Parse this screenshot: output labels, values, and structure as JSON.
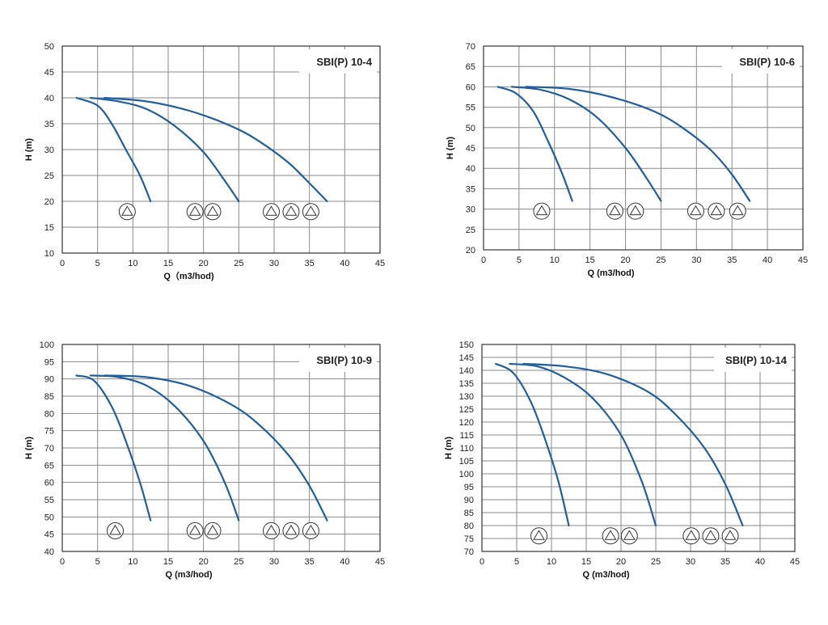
{
  "chart_data": [
    {
      "type": "line",
      "title": "SBI(P) 10-4",
      "xlabel": "Q（m3/hod)",
      "ylabel": "H (m)",
      "xlim": [
        0,
        45
      ],
      "ylim": [
        10,
        50
      ],
      "xticks": [
        0,
        5,
        10,
        15,
        20,
        25,
        30,
        35,
        40,
        45
      ],
      "yticks": [
        10,
        15,
        20,
        25,
        30,
        35,
        40,
        45,
        50
      ],
      "grid": true,
      "series": [
        {
          "x": [
            2,
            5,
            7,
            9,
            11,
            12.5
          ],
          "y": [
            40,
            38.5,
            35,
            30,
            25,
            20
          ]
        },
        {
          "x": [
            4,
            8,
            12,
            16,
            20,
            23,
            25
          ],
          "y": [
            40,
            39.3,
            37.8,
            34.5,
            29.5,
            24,
            20
          ]
        },
        {
          "x": [
            6,
            12,
            18,
            24,
            28,
            32,
            35,
            37.5
          ],
          "y": [
            40,
            39.3,
            37.5,
            34.5,
            31.5,
            27.5,
            23.5,
            20
          ]
        }
      ],
      "markers": {
        "y": 18,
        "x": [
          9.2,
          18.8,
          21.3,
          29.6,
          32.4,
          35.2
        ]
      }
    },
    {
      "type": "line",
      "title": "SBI(P) 10-6",
      "xlabel": "Q (m3/hod)",
      "ylabel": "H (m)",
      "xlim": [
        0,
        45
      ],
      "ylim": [
        20,
        70
      ],
      "xticks": [
        0,
        5,
        10,
        15,
        20,
        25,
        30,
        35,
        40,
        45
      ],
      "yticks": [
        20,
        25,
        30,
        35,
        40,
        45,
        50,
        55,
        60,
        65,
        70
      ],
      "grid": true,
      "series": [
        {
          "x": [
            2,
            4.5,
            7,
            9,
            11,
            12.5
          ],
          "y": [
            60,
            58.5,
            54,
            47,
            39,
            32
          ]
        },
        {
          "x": [
            4,
            8,
            12,
            16,
            20,
            23,
            25
          ],
          "y": [
            60,
            59.3,
            57,
            52.5,
            45,
            37.5,
            32
          ]
        },
        {
          "x": [
            6,
            12,
            18,
            24,
            28,
            32,
            35,
            37.5
          ],
          "y": [
            60,
            59.5,
            57.5,
            54,
            50,
            44.5,
            38.5,
            32
          ]
        }
      ],
      "markers": {
        "y": 29.5,
        "x": [
          8.2,
          18.5,
          21.4,
          29.9,
          32.8,
          35.8
        ]
      }
    },
    {
      "type": "line",
      "title": "SBI(P) 10-9",
      "xlabel": "Q (m3/hod)",
      "ylabel": "H (m)",
      "xlim": [
        0,
        45
      ],
      "ylim": [
        40,
        100
      ],
      "xticks": [
        0,
        5,
        10,
        15,
        20,
        25,
        30,
        35,
        40,
        45
      ],
      "yticks": [
        40,
        45,
        50,
        55,
        60,
        65,
        70,
        75,
        80,
        85,
        90,
        95,
        100
      ],
      "grid": true,
      "series": [
        {
          "x": [
            2,
            4.5,
            7,
            9,
            11,
            12.5
          ],
          "y": [
            91,
            89.5,
            82,
            72,
            60,
            49
          ]
        },
        {
          "x": [
            4,
            8,
            12,
            16,
            20,
            23,
            25
          ],
          "y": [
            91,
            90.5,
            88,
            82,
            72,
            60,
            49
          ]
        },
        {
          "x": [
            6,
            12,
            18,
            24,
            28,
            32,
            35,
            37.5
          ],
          "y": [
            91,
            90.5,
            88,
            82.5,
            76.5,
            68,
            59,
            49
          ]
        }
      ],
      "markers": {
        "y": 46,
        "x": [
          7.5,
          18.8,
          21.3,
          29.6,
          32.4,
          35.2
        ]
      }
    },
    {
      "type": "line",
      "title": "SBI(P) 10-14",
      "xlabel": "Q (m3/hod)",
      "ylabel": "H (m)",
      "xlim": [
        0,
        45
      ],
      "ylim": [
        70,
        150
      ],
      "xticks": [
        0,
        5,
        10,
        15,
        20,
        25,
        30,
        35,
        40,
        45
      ],
      "yticks": [
        70,
        75,
        80,
        85,
        90,
        95,
        100,
        105,
        110,
        115,
        120,
        125,
        130,
        135,
        140,
        145,
        150
      ],
      "grid": true,
      "series": [
        {
          "x": [
            2,
            4.5,
            7,
            9,
            11,
            12.5
          ],
          "y": [
            142.5,
            139,
            128,
            114,
            97,
            80
          ]
        },
        {
          "x": [
            4,
            8,
            12,
            16,
            20,
            23,
            25
          ],
          "y": [
            142.5,
            141.5,
            137,
            129,
            115,
            97,
            80
          ]
        },
        {
          "x": [
            6,
            12,
            18,
            24,
            28,
            32,
            35,
            37.5
          ],
          "y": [
            142.5,
            141.5,
            138.5,
            131.5,
            122.5,
            110,
            96,
            80
          ]
        }
      ],
      "markers": {
        "y": 76,
        "x": [
          8.2,
          18.5,
          21.2,
          30.1,
          32.9,
          35.7
        ]
      }
    }
  ]
}
